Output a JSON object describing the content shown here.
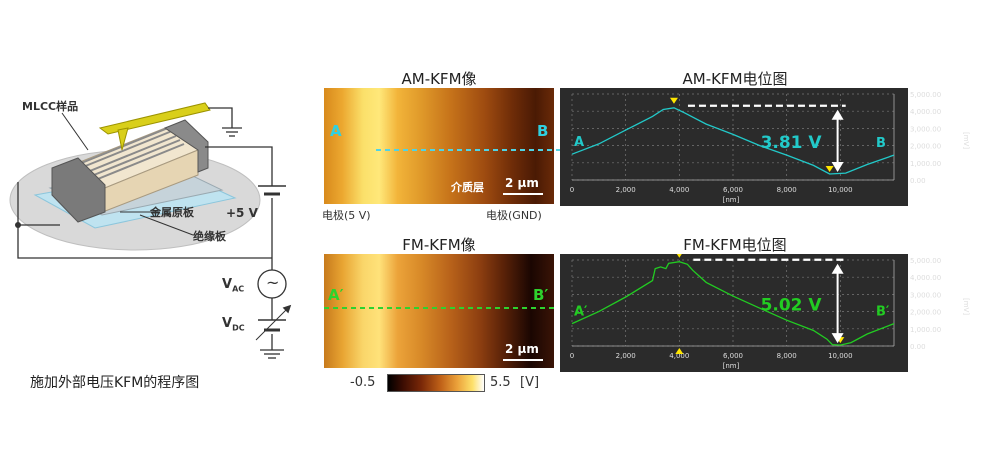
{
  "schematic": {
    "sample_label": "MLCC样品",
    "plate_label": "金属原板",
    "insulation_label": "绝缘板",
    "voltage_label": "+5 V",
    "vac_main": "V",
    "vac_sub": "AC",
    "vdc_main": "V",
    "vdc_sub": "DC",
    "ac_symbol": "~",
    "caption": "施加外部电压KFM的程序图"
  },
  "am_image": {
    "title": "AM-KFM像",
    "point_a": "A",
    "point_b": "B",
    "layer_label": "介质层",
    "scale_bar": "2 μm",
    "left_electrode": "电极(5 V)",
    "right_electrode": "电极(GND)"
  },
  "fm_image": {
    "title": "FM-KFM像",
    "point_a": "A′",
    "point_b": "B′",
    "scale_bar": "2 μm"
  },
  "colorbar": {
    "min": "-0.5",
    "max": "5.5",
    "unit": "[V]"
  },
  "colors": {
    "am_profile": "#22c9c9",
    "fm_profile": "#22cc22",
    "marker": "#ffe600",
    "plot_bg": "#2b2b2b"
  },
  "chart_data": [
    {
      "type": "line",
      "title": "AM-KFM电位图",
      "xlabel": "[nm]",
      "ylabel": "[mV]",
      "xlim": [
        0,
        12000
      ],
      "ylim": [
        0,
        5000
      ],
      "xticks": [
        "0",
        "2,000",
        "4,000",
        "6,000",
        "8,000",
        "10,000"
      ],
      "yticks": [
        "0.00",
        "1,000.00",
        "2,000.00",
        "3,000.00",
        "4,000.00",
        "5,000.00"
      ],
      "annotation": "3.81 V",
      "start_label": "A",
      "end_label": "B",
      "x": [
        0,
        1000,
        2000,
        3000,
        3400,
        3800,
        4200,
        5000,
        6000,
        7000,
        8000,
        9000,
        9600,
        10200,
        11000,
        12000
      ],
      "y": [
        1500,
        2100,
        2900,
        3700,
        4100,
        4200,
        3900,
        3250,
        2650,
        2000,
        1450,
        850,
        350,
        400,
        900,
        1450
      ]
    },
    {
      "type": "line",
      "title": "FM-KFM电位图",
      "xlabel": "[nm]",
      "ylabel": "[mV]",
      "xlim": [
        0,
        12000
      ],
      "ylim": [
        0,
        5000
      ],
      "xticks": [
        "0",
        "2,000",
        "4,000",
        "6,000",
        "8,000",
        "10,000"
      ],
      "yticks": [
        "0.00",
        "1,000.00",
        "2,000.00",
        "3,000.00",
        "4,000.00",
        "5,000.00"
      ],
      "annotation": "5.02 V",
      "start_label": "A′",
      "end_label": "B′",
      "x": [
        0,
        1000,
        2000,
        3000,
        3100,
        3300,
        3500,
        3600,
        4000,
        4300,
        4500,
        5000,
        6000,
        7000,
        8000,
        9000,
        9500,
        9700,
        10000,
        10400,
        11000,
        12000
      ],
      "y": [
        1300,
        2000,
        2850,
        3800,
        4500,
        4600,
        4500,
        4800,
        4900,
        4750,
        4400,
        3700,
        2900,
        2200,
        1500,
        900,
        400,
        80,
        50,
        200,
        700,
        1300
      ]
    }
  ]
}
